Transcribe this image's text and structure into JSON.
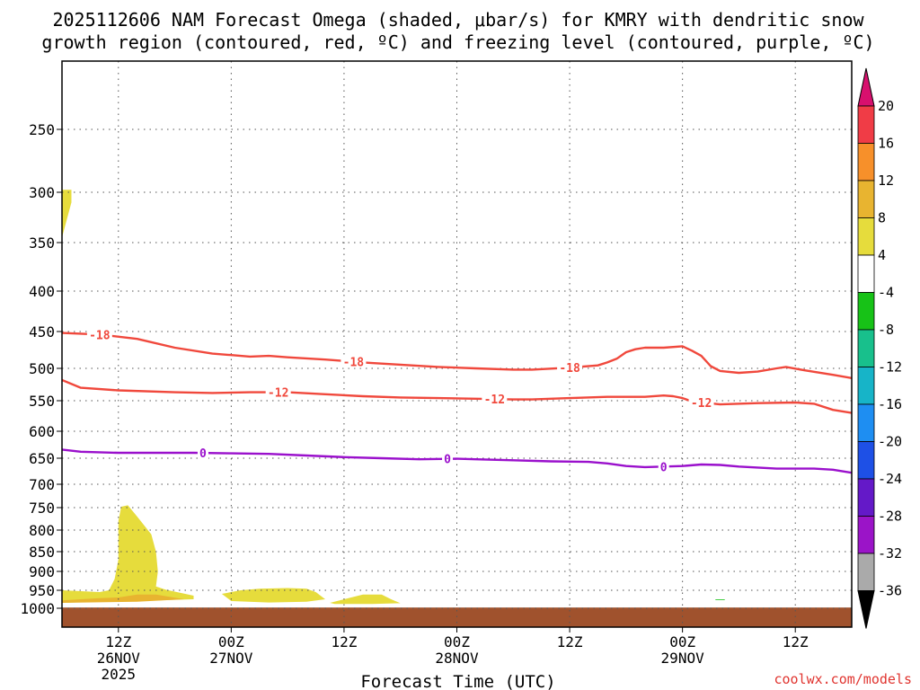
{
  "chart_data": {
    "type": "contour",
    "title_line1": "2025112606 NAM Forecast Omega (shaded, μbar/s) for KMRY with dendritic snow",
    "title_line2": "growth region (contoured, red, ºC) and freezing level (contoured, purple, ºC)",
    "xlabel": "Forecast Time (UTC)",
    "x_range_hours": [
      0,
      84
    ],
    "x_ticks": [
      {
        "hour": 6,
        "label": "12Z",
        "date": "26NOV",
        "year": "2025"
      },
      {
        "hour": 18,
        "label": "00Z",
        "date": "27NOV",
        "year": ""
      },
      {
        "hour": 30,
        "label": "12Z",
        "date": "",
        "year": ""
      },
      {
        "hour": 42,
        "label": "00Z",
        "date": "28NOV",
        "year": ""
      },
      {
        "hour": 54,
        "label": "12Z",
        "date": "",
        "year": ""
      },
      {
        "hour": 66,
        "label": "00Z",
        "date": "29NOV",
        "year": ""
      },
      {
        "hour": 78,
        "label": "12Z",
        "date": "",
        "year": ""
      }
    ],
    "y_ticks": [
      "250",
      "300",
      "350",
      "400",
      "450",
      "500",
      "550",
      "600",
      "650",
      "700",
      "750",
      "800",
      "850",
      "900",
      "950",
      "1000"
    ],
    "pressure_range_hPa": [
      200,
      1030
    ],
    "terrain_hPa": 998,
    "colorbar": {
      "labels": [
        "20",
        "16",
        "12",
        "8",
        "4",
        "-4",
        "-8",
        "-12",
        "-16",
        "-20",
        "-24",
        "-28",
        "-32",
        "-36"
      ],
      "colors": [
        "#f03c46",
        "#f7902a",
        "#e8b430",
        "#e6dc3c",
        "#ffffff",
        "#17c217",
        "#18c08c",
        "#17b4c8",
        "#1e8ef2",
        "#1e50e6",
        "#6419c8",
        "#9b14c8",
        "#aaaaaa"
      ],
      "top_color": "#d8106e",
      "bottom_color": "#000000"
    },
    "contours": [
      {
        "name": "-18C",
        "color": "#f0483c",
        "labels": [
          "-18",
          "-18",
          "-18"
        ],
        "points": [
          [
            0,
            452
          ],
          [
            4,
            454
          ],
          [
            8,
            460
          ],
          [
            12,
            472
          ],
          [
            16,
            480
          ],
          [
            18,
            482
          ],
          [
            20,
            484
          ],
          [
            22,
            483
          ],
          [
            24,
            485
          ],
          [
            28,
            488
          ],
          [
            32,
            492
          ],
          [
            36,
            495
          ],
          [
            40,
            498
          ],
          [
            44,
            500
          ],
          [
            48,
            502
          ],
          [
            50,
            502
          ],
          [
            54,
            499
          ],
          [
            57,
            496
          ],
          [
            58,
            492
          ],
          [
            59,
            487
          ],
          [
            60,
            478
          ],
          [
            61,
            474
          ],
          [
            62,
            472
          ],
          [
            64,
            472
          ],
          [
            66,
            470
          ],
          [
            67,
            476
          ],
          [
            68,
            483
          ],
          [
            69,
            497
          ],
          [
            70,
            504
          ],
          [
            72,
            507
          ],
          [
            74,
            505
          ],
          [
            76,
            500
          ],
          [
            77,
            498
          ],
          [
            79,
            503
          ],
          [
            82,
            510
          ],
          [
            84,
            515
          ]
        ],
        "label_hours": [
          4,
          31,
          54
        ]
      },
      {
        "name": "-12C",
        "color": "#f0483c",
        "labels": [
          "-12",
          "-12",
          "-12"
        ],
        "points": [
          [
            0,
            518
          ],
          [
            2,
            530
          ],
          [
            6,
            534
          ],
          [
            12,
            537
          ],
          [
            16,
            538
          ],
          [
            20,
            537
          ],
          [
            24,
            537
          ],
          [
            28,
            540
          ],
          [
            32,
            543
          ],
          [
            36,
            545
          ],
          [
            40,
            546
          ],
          [
            44,
            547
          ],
          [
            48,
            548
          ],
          [
            50,
            548
          ],
          [
            54,
            546
          ],
          [
            58,
            544
          ],
          [
            62,
            544
          ],
          [
            64,
            542
          ],
          [
            65,
            543
          ],
          [
            66,
            546
          ],
          [
            67,
            551
          ],
          [
            70,
            556
          ],
          [
            74,
            554
          ],
          [
            78,
            553
          ],
          [
            80,
            555
          ],
          [
            82,
            565
          ],
          [
            84,
            570
          ]
        ],
        "label_hours": [
          23,
          46,
          68
        ]
      },
      {
        "name": "0C",
        "color": "#9a10cc",
        "labels": [
          "0",
          "0",
          "0"
        ],
        "points": [
          [
            0,
            634
          ],
          [
            2,
            638
          ],
          [
            6,
            640
          ],
          [
            10,
            640
          ],
          [
            14,
            640
          ],
          [
            18,
            641
          ],
          [
            22,
            642
          ],
          [
            26,
            645
          ],
          [
            30,
            648
          ],
          [
            34,
            650
          ],
          [
            38,
            652
          ],
          [
            42,
            651
          ],
          [
            44,
            652
          ],
          [
            48,
            654
          ],
          [
            52,
            656
          ],
          [
            56,
            657
          ],
          [
            58,
            660
          ],
          [
            60,
            665
          ],
          [
            62,
            667
          ],
          [
            64,
            666
          ],
          [
            66,
            665
          ],
          [
            68,
            662
          ],
          [
            70,
            663
          ],
          [
            72,
            666
          ],
          [
            76,
            670
          ],
          [
            80,
            670
          ],
          [
            82,
            672
          ],
          [
            84,
            678
          ]
        ],
        "label_hours": [
          15,
          41,
          64
        ]
      }
    ],
    "shaded_regions": [
      {
        "name": "upper-band",
        "value": "4 to 8",
        "color": "#e6dc3c",
        "points": [
          [
            0,
            298
          ],
          [
            1,
            298
          ],
          [
            1,
            310
          ],
          [
            0,
            345
          ]
        ]
      },
      {
        "name": "column-low",
        "value": "4 to 8",
        "color": "#e6dc3c",
        "points": [
          [
            0,
            950
          ],
          [
            4,
            955
          ],
          [
            5,
            950
          ],
          [
            5.6,
            920
          ],
          [
            6,
            870
          ],
          [
            6,
            780
          ],
          [
            6.3,
            748
          ],
          [
            7,
            745
          ],
          [
            8,
            770
          ],
          [
            9.5,
            810
          ],
          [
            10,
            850
          ],
          [
            10.2,
            900
          ],
          [
            10,
            940
          ],
          [
            11,
            948
          ],
          [
            14,
            965
          ],
          [
            14,
            975
          ],
          [
            10,
            978
          ],
          [
            4,
            982
          ],
          [
            0,
            985
          ]
        ]
      },
      {
        "name": "column-core",
        "value": "8 to 12",
        "color": "#e8b430",
        "points": [
          [
            0,
            978
          ],
          [
            4,
            972
          ],
          [
            6,
            970
          ],
          [
            8,
            962
          ],
          [
            10,
            962
          ],
          [
            13,
            975
          ],
          [
            8,
            982
          ],
          [
            0,
            985
          ]
        ]
      },
      {
        "name": "blob-mid",
        "value": "4 to 8",
        "color": "#e6dc3c",
        "points": [
          [
            17,
            960
          ],
          [
            19,
            950
          ],
          [
            21,
            946
          ],
          [
            24,
            944
          ],
          [
            26,
            946
          ],
          [
            27,
            955
          ],
          [
            28,
            975
          ],
          [
            26,
            982
          ],
          [
            22,
            984
          ],
          [
            18,
            980
          ]
        ]
      },
      {
        "name": "blob-right",
        "value": "4 to 8",
        "color": "#e6dc3c",
        "points": [
          [
            28.5,
            985
          ],
          [
            30,
            975
          ],
          [
            32,
            962
          ],
          [
            34,
            962
          ],
          [
            35,
            975
          ],
          [
            36,
            986
          ],
          [
            33,
            988
          ],
          [
            29,
            988
          ]
        ]
      },
      {
        "name": "speck",
        "value": "-4 to -8",
        "color": "#17c217",
        "points": [
          [
            69.5,
            975
          ],
          [
            70.5,
            975
          ],
          [
            70.5,
            977
          ],
          [
            69.5,
            977
          ]
        ]
      }
    ],
    "credit": "coolwx.com/models"
  }
}
